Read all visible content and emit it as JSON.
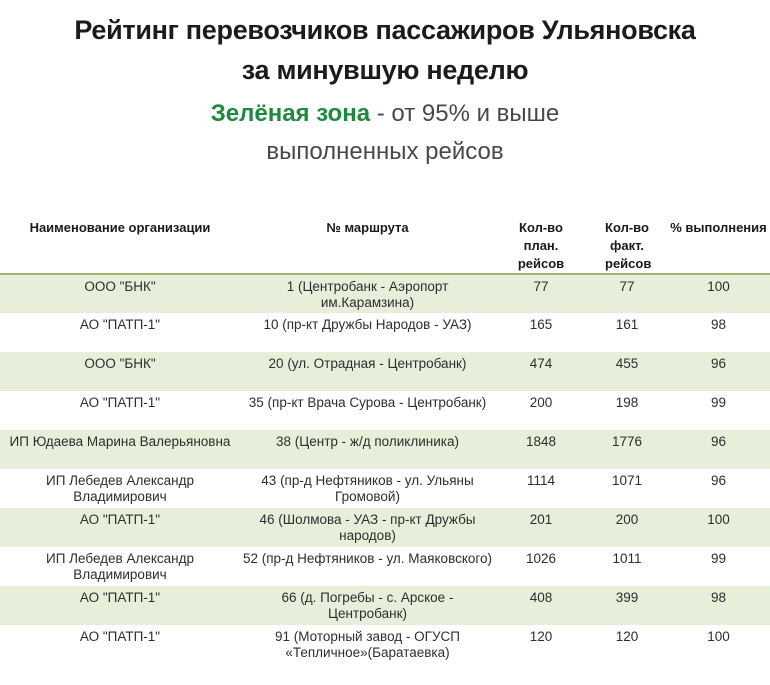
{
  "header": {
    "title_line1": "Рейтинг перевозчиков пассажиров Ульяновска",
    "title_line2": "за минувшую неделю",
    "subtitle_highlight": "Зелёная зона",
    "subtitle_rest": " - от 95% и выше выполненных рейсов"
  },
  "colors": {
    "highlight_green": "#1e8a3d",
    "row_stripe_green": "#e7eeda",
    "header_border_olive": "#a3b173",
    "title_text": "#1b1b1b",
    "subtitle_text": "#46494b",
    "table_text": "#2e2e2e"
  },
  "table": {
    "columns": [
      "Наименование организации",
      "№ маршрута",
      "Кол-во план. рейсов",
      "Кол-во факт. рейсов",
      "% выполнения"
    ],
    "rows": [
      {
        "org": "ООО \"БНК\"",
        "route": "1 (Центробанк - Аэропорт им.Карамзина)",
        "plan": "77",
        "fact": "77",
        "pct": "100"
      },
      {
        "org": "АО \"ПАТП-1\"",
        "route": "10 (пр-кт Дружбы Народов - УАЗ)",
        "plan": "165",
        "fact": "161",
        "pct": "98"
      },
      {
        "org": "ООО \"БНК\"",
        "route": "20 (ул. Отрадная - Центробанк)",
        "plan": "474",
        "fact": "455",
        "pct": "96"
      },
      {
        "org": "АО \"ПАТП-1\"",
        "route": "35 (пр-кт Врача Сурова - Центробанк)",
        "plan": "200",
        "fact": "198",
        "pct": "99"
      },
      {
        "org": "ИП Юдаева Марина Валерьяновна",
        "route": "38 (Центр - ж/д поликлиника)",
        "plan": "1848",
        "fact": "1776",
        "pct": "96"
      },
      {
        "org": "ИП Лебедев Александр Владимирович",
        "route": "43 (пр-д Нефтяников - ул. Ульяны Громовой)",
        "plan": "1114",
        "fact": "1071",
        "pct": "96"
      },
      {
        "org": "АО \"ПАТП-1\"",
        "route": "46 (Шолмова - УАЗ - пр-кт Дружбы народов)",
        "plan": "201",
        "fact": "200",
        "pct": "100"
      },
      {
        "org": "ИП Лебедев Александр Владимирович",
        "route": "52 (пр-д Нефтяников - ул. Маяковского)",
        "plan": "1026",
        "fact": "1011",
        "pct": "99"
      },
      {
        "org": "АО \"ПАТП-1\"",
        "route": "66 (д. Погребы - с. Арское - Центробанк)",
        "plan": "408",
        "fact": "399",
        "pct": "98"
      },
      {
        "org": "АО \"ПАТП-1\"",
        "route": "91 (Моторный завод - ОГУСП «Тепличное»(Баратаевка)",
        "plan": "120",
        "fact": "120",
        "pct": "100"
      }
    ]
  }
}
